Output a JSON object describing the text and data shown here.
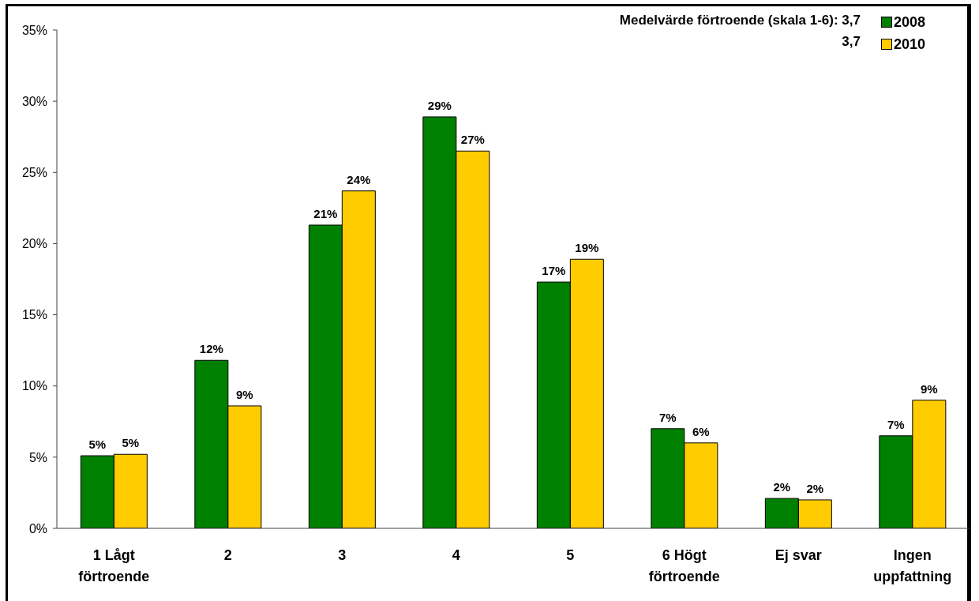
{
  "chart_data": {
    "type": "bar",
    "categories": [
      "1 Lågt förtroende",
      "2",
      "3",
      "4",
      "5",
      "6 Högt förtroende",
      "Ej svar",
      "Ingen uppfattning"
    ],
    "series": [
      {
        "name": "2008",
        "color": "#008000",
        "values": [
          5.1,
          11.8,
          21.3,
          28.9,
          17.3,
          7.0,
          2.1,
          6.5
        ],
        "value_labels": [
          "5%",
          "12%",
          "21%",
          "29%",
          "17%",
          "7%",
          "2%",
          "7%"
        ]
      },
      {
        "name": "2010",
        "color": "#ffcc00",
        "values": [
          5.2,
          8.6,
          23.7,
          26.5,
          18.9,
          6.0,
          2.0,
          9.0
        ],
        "value_labels": [
          "5%",
          "9%",
          "24%",
          "27%",
          "19%",
          "6%",
          "2%",
          "9%"
        ]
      }
    ],
    "ylim": [
      0,
      35
    ],
    "yticks": [
      {
        "value": 0,
        "label": "0%"
      },
      {
        "value": 5,
        "label": "5%"
      },
      {
        "value": 10,
        "label": "10%"
      },
      {
        "value": 15,
        "label": "15%"
      },
      {
        "value": 20,
        "label": "20%"
      },
      {
        "value": 25,
        "label": "25%"
      },
      {
        "value": 30,
        "label": "30%"
      },
      {
        "value": 35,
        "label": "35%"
      }
    ],
    "grid": false,
    "legend": "top right",
    "annotations": [
      "Medelvärde förtroende (skala 1-6): 3,7",
      "3,7"
    ]
  }
}
